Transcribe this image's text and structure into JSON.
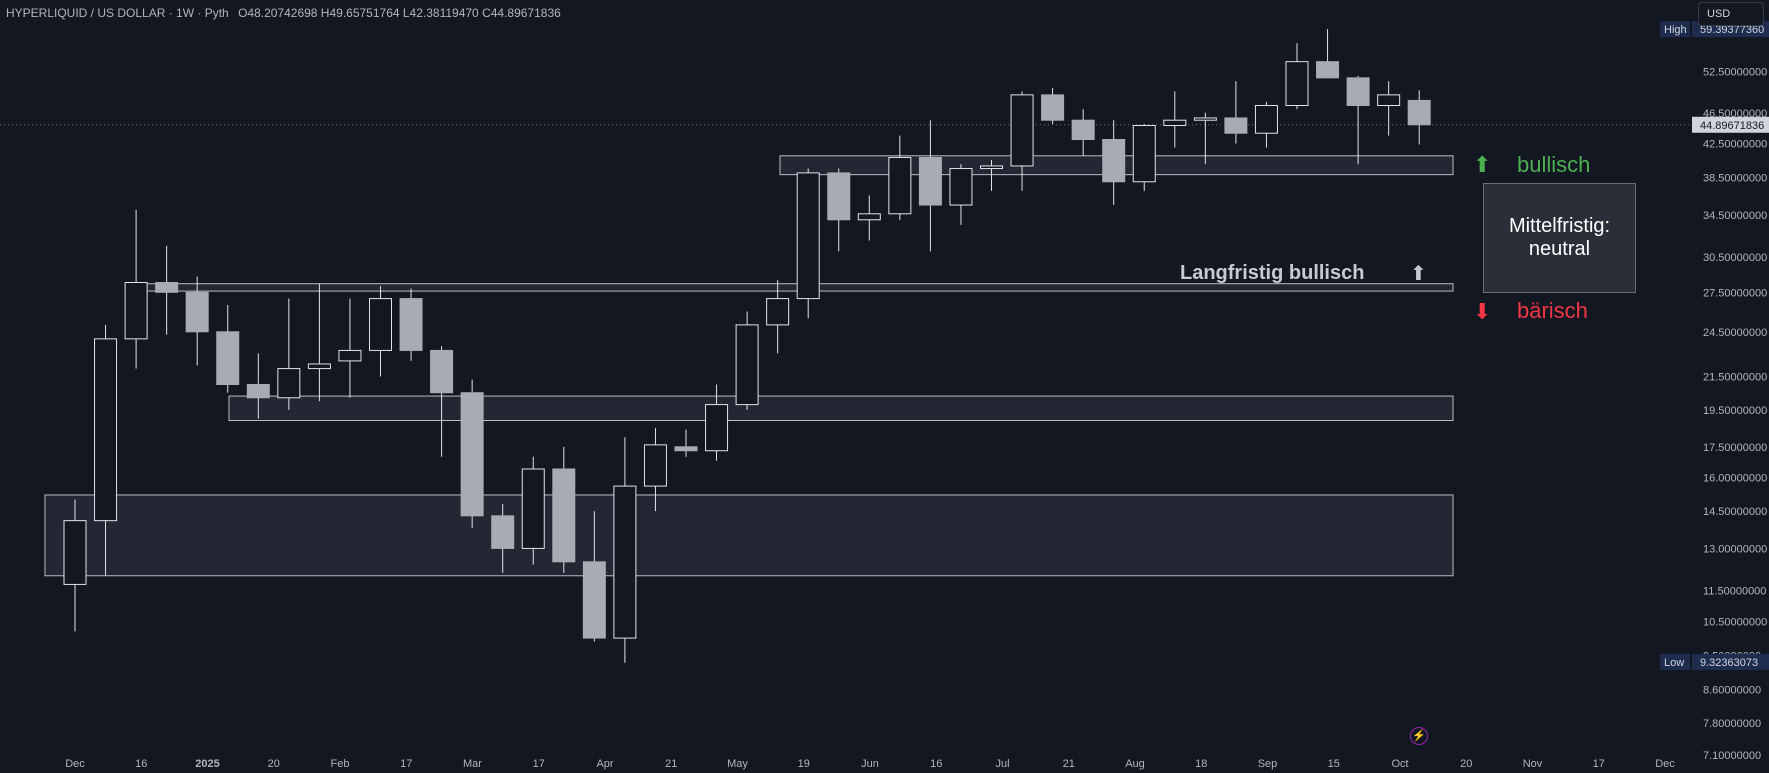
{
  "header": {
    "title": "HYPERLIQUID / US DOLLAR · 1W · Pyth",
    "ohlc": "O48.20742698  H49.65751764  L42.38119470  C44.89671836"
  },
  "currency_button": "USD",
  "price_scale": {
    "ticks": [
      "52.50000000",
      "46.50000000",
      "42.50000000",
      "38.50000000",
      "34.50000000",
      "30.50000000",
      "27.50000000",
      "24.50000000",
      "21.50000000",
      "19.50000000",
      "17.50000000",
      "16.00000000",
      "14.50000000",
      "13.00000000",
      "11.50000000",
      "10.50000000",
      "9.50000000",
      "8.60000000",
      "7.80000000",
      "7.10000000"
    ],
    "high_label": "High",
    "high_value": "59.39377360",
    "low_label": "Low",
    "low_value": "9.32363073",
    "last_value": "44.89671836"
  },
  "time_axis": {
    "labels": [
      "Dec",
      "16",
      "2025",
      "20",
      "Feb",
      "17",
      "Mar",
      "17",
      "Apr",
      "21",
      "May",
      "19",
      "Jun",
      "16",
      "Jul",
      "21",
      "Aug",
      "18",
      "Sep",
      "15",
      "Oct",
      "20",
      "Nov",
      "17",
      "Dec"
    ]
  },
  "annotations": {
    "bullish": "bullisch",
    "bearish": "bärisch",
    "mid_line1": "Mittelfristig:",
    "mid_line2": "neutral",
    "long_term": "Langfristig bullisch"
  },
  "icons": {
    "up_green": "arrow-up-icon",
    "down_red": "arrow-down-icon",
    "long_up": "arrow-up-icon",
    "lightning": "lightning-icon"
  },
  "colors": {
    "background": "#131722",
    "candle_up_fill": "#131722",
    "candle_down_fill": "#a9abb2",
    "candle_border": "#e0e3eb",
    "bullish": "#4caf50",
    "bearish": "#f23645",
    "zone_fill": "#2a2e39",
    "zone_border": "#b8bcc6"
  },
  "zones": [
    {
      "name": "zone-top",
      "low": 38.8,
      "high": 41.0
    },
    {
      "name": "zone-long-term",
      "low": 27.6,
      "high": 28.2
    },
    {
      "name": "zone-mid",
      "low": 18.9,
      "high": 20.3
    },
    {
      "name": "zone-low",
      "low": 12.0,
      "high": 15.2
    }
  ],
  "chart_data": {
    "type": "candlestick",
    "title": "HYPERLIQUID / US DOLLAR · 1W · Pyth",
    "scale": "log",
    "ylim": [
      7.0,
      61.0
    ],
    "candles": [
      {
        "o": 11.7,
        "h": 15.0,
        "l": 10.2,
        "c": 14.1
      },
      {
        "o": 14.1,
        "h": 25.0,
        "l": 12.0,
        "c": 24.0
      },
      {
        "o": 24.0,
        "h": 35.0,
        "l": 22.0,
        "c": 28.3
      },
      {
        "o": 28.3,
        "h": 31.5,
        "l": 24.3,
        "c": 27.5
      },
      {
        "o": 27.5,
        "h": 28.8,
        "l": 22.2,
        "c": 24.5
      },
      {
        "o": 24.5,
        "h": 26.5,
        "l": 20.5,
        "c": 21.0
      },
      {
        "o": 21.0,
        "h": 23.0,
        "l": 19.0,
        "c": 20.2
      },
      {
        "o": 20.2,
        "h": 27.0,
        "l": 19.5,
        "c": 22.0
      },
      {
        "o": 22.0,
        "h": 28.2,
        "l": 20.0,
        "c": 22.3
      },
      {
        "o": 22.5,
        "h": 27.0,
        "l": 20.2,
        "c": 23.2
      },
      {
        "o": 23.2,
        "h": 28.0,
        "l": 21.5,
        "c": 27.0
      },
      {
        "o": 27.0,
        "h": 27.8,
        "l": 22.5,
        "c": 23.2
      },
      {
        "o": 23.2,
        "h": 23.5,
        "l": 17.0,
        "c": 20.5
      },
      {
        "o": 20.5,
        "h": 21.3,
        "l": 13.8,
        "c": 14.3
      },
      {
        "o": 14.3,
        "h": 14.8,
        "l": 12.1,
        "c": 13.0
      },
      {
        "o": 13.0,
        "h": 17.0,
        "l": 12.4,
        "c": 16.4
      },
      {
        "o": 16.4,
        "h": 17.5,
        "l": 12.1,
        "c": 12.5
      },
      {
        "o": 12.5,
        "h": 14.5,
        "l": 9.9,
        "c": 10.0
      },
      {
        "o": 10.0,
        "h": 18.0,
        "l": 9.3,
        "c": 15.6
      },
      {
        "o": 15.6,
        "h": 18.5,
        "l": 14.5,
        "c": 17.6
      },
      {
        "o": 17.5,
        "h": 18.4,
        "l": 17.0,
        "c": 17.3
      },
      {
        "o": 17.3,
        "h": 21.0,
        "l": 16.8,
        "c": 19.8
      },
      {
        "o": 19.8,
        "h": 26.0,
        "l": 19.5,
        "c": 25.0
      },
      {
        "o": 25.0,
        "h": 28.5,
        "l": 23.0,
        "c": 27.0
      },
      {
        "o": 27.0,
        "h": 39.5,
        "l": 25.5,
        "c": 39.0
      },
      {
        "o": 39.0,
        "h": 39.5,
        "l": 31.0,
        "c": 34.0
      },
      {
        "o": 34.0,
        "h": 36.5,
        "l": 32.0,
        "c": 34.6
      },
      {
        "o": 34.6,
        "h": 43.5,
        "l": 34.0,
        "c": 40.8
      },
      {
        "o": 40.8,
        "h": 45.5,
        "l": 31.0,
        "c": 35.5
      },
      {
        "o": 35.5,
        "h": 40.0,
        "l": 33.5,
        "c": 39.5
      },
      {
        "o": 39.5,
        "h": 40.5,
        "l": 37.0,
        "c": 39.8
      },
      {
        "o": 39.8,
        "h": 49.5,
        "l": 37.0,
        "c": 49.0
      },
      {
        "o": 49.0,
        "h": 50.0,
        "l": 45.0,
        "c": 45.5
      },
      {
        "o": 45.5,
        "h": 47.0,
        "l": 41.0,
        "c": 43.0
      },
      {
        "o": 43.0,
        "h": 45.5,
        "l": 35.5,
        "c": 38.0
      },
      {
        "o": 38.0,
        "h": 45.0,
        "l": 37.0,
        "c": 44.8
      },
      {
        "o": 44.8,
        "h": 49.5,
        "l": 42.0,
        "c": 45.5
      },
      {
        "o": 45.5,
        "h": 46.5,
        "l": 40.0,
        "c": 45.8
      },
      {
        "o": 45.8,
        "h": 51.0,
        "l": 42.5,
        "c": 43.8
      },
      {
        "o": 43.8,
        "h": 48.0,
        "l": 42.0,
        "c": 47.5
      },
      {
        "o": 47.5,
        "h": 57.0,
        "l": 47.0,
        "c": 54.0
      },
      {
        "o": 54.0,
        "h": 59.4,
        "l": 51.5,
        "c": 51.5
      },
      {
        "o": 51.5,
        "h": 51.8,
        "l": 40.0,
        "c": 47.5
      },
      {
        "o": 47.5,
        "h": 51.0,
        "l": 43.5,
        "c": 49.0
      },
      {
        "o": 48.21,
        "h": 49.66,
        "l": 42.38,
        "c": 44.9
      }
    ]
  }
}
